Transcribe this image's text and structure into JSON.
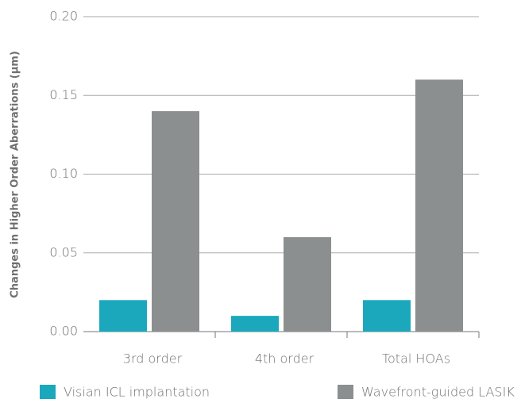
{
  "chart_data": {
    "type": "bar",
    "y_label": "Changes in Higher Order Aberrations (µm)",
    "categories": [
      "3rd order",
      "4th order",
      "Total HOAs"
    ],
    "series": [
      {
        "name": "Visian ICL implantation",
        "color": "#1ba8bd",
        "values": [
          0.02,
          0.01,
          0.02
        ]
      },
      {
        "name": "Wavefront-guided LASIK",
        "color": "#8c8f8f",
        "values": [
          0.14,
          0.06,
          0.16
        ]
      }
    ],
    "ylim": [
      0,
      0.2
    ],
    "yticks": [
      {
        "value": 0,
        "label": "0.00"
      },
      0.05,
      {
        "value": 0.1,
        "label": "0.10"
      },
      0.15,
      {
        "value": 0.2,
        "label": "0.20"
      }
    ],
    "grid": true
  }
}
